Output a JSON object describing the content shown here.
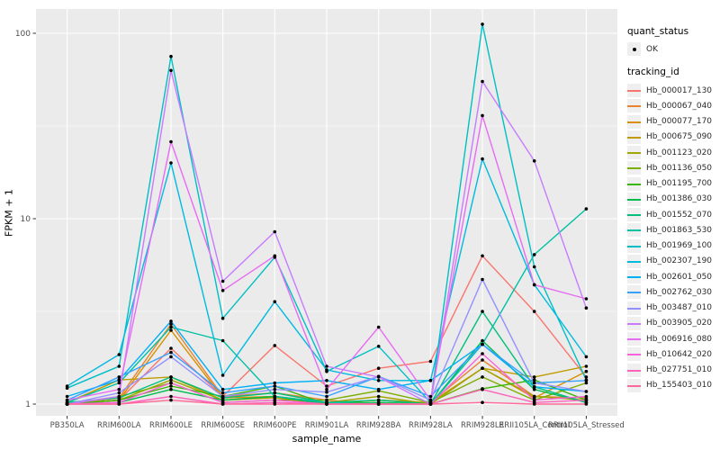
{
  "figure": {
    "background": "#ffffff",
    "panel_fill": "#ebebeb",
    "grid_color": "#ffffff",
    "tick_color": "#333333",
    "tick_label_color": "#4d4d4d"
  },
  "legend": {
    "quant_title": "quant_status",
    "quant_item_label": "OK",
    "tracking_title": "tracking_id"
  },
  "chart_data": {
    "type": "line",
    "title": "",
    "xlabel": "sample_name",
    "ylabel": "FPKM + 1",
    "y_scale": "log10",
    "ylim": [
      1,
      130
    ],
    "y_breaks": [
      1,
      10,
      100
    ],
    "y_break_labels": [
      "1",
      "10",
      "100"
    ],
    "y_minor_breaks": [
      3.1623,
      31.623
    ],
    "grid": true,
    "legend_position": "right",
    "point_marker": "black-dot",
    "quant_status": "OK",
    "categories": [
      "PB350LA",
      "RRIM600LA",
      "RRIM600LE",
      "RRIM600SE",
      "RRIM600PE",
      "RRIM901LA",
      "RRIM928BA",
      "RRIM928LA",
      "RRIM928LE",
      "RRII105LA_Control",
      "RRII105LA_Stressed"
    ],
    "series": [
      {
        "name": "Hb_000017_130",
        "color": "#F8766D",
        "values": [
          1.0,
          1.05,
          2.0,
          1.1,
          2.07,
          1.25,
          1.56,
          1.7,
          6.3,
          3.16,
          1.4
        ]
      },
      {
        "name": "Hb_000067_040",
        "color": "#EA8331",
        "values": [
          1.0,
          1.08,
          2.7,
          1.1,
          1.15,
          1.05,
          1.0,
          1.02,
          1.73,
          1.1,
          1.08
        ]
      },
      {
        "name": "Hb_000077_170",
        "color": "#D89000",
        "values": [
          1.0,
          1.05,
          2.5,
          1.08,
          1.1,
          1.02,
          1.0,
          1.0,
          1.56,
          1.08,
          1.5
        ]
      },
      {
        "name": "Hb_000675_090",
        "color": "#C09B00",
        "values": [
          1.02,
          1.35,
          1.4,
          1.05,
          1.08,
          1.0,
          1.05,
          1.02,
          1.56,
          1.4,
          1.6
        ]
      },
      {
        "name": "Hb_001123_020",
        "color": "#A3A500",
        "values": [
          1.0,
          1.05,
          1.35,
          1.05,
          1.1,
          1.02,
          1.1,
          1.0,
          1.56,
          1.1,
          1.05
        ]
      },
      {
        "name": "Hb_001136_050",
        "color": "#7CAE00",
        "values": [
          1.0,
          1.1,
          1.3,
          1.02,
          1.05,
          1.05,
          1.18,
          1.02,
          1.4,
          1.05,
          1.3
        ]
      },
      {
        "name": "Hb_001195_700",
        "color": "#39B600",
        "values": [
          1.0,
          1.05,
          1.25,
          1.1,
          1.25,
          1.0,
          1.05,
          1.0,
          1.21,
          1.35,
          1.05
        ]
      },
      {
        "name": "Hb_001386_030",
        "color": "#00BB4E",
        "values": [
          1.0,
          1.02,
          1.2,
          1.05,
          1.1,
          1.0,
          1.02,
          1.0,
          2.2,
          1.2,
          1.02
        ]
      },
      {
        "name": "Hb_001552_070",
        "color": "#00BF7D",
        "values": [
          1.02,
          1.08,
          1.4,
          1.08,
          1.15,
          1.02,
          1.05,
          1.0,
          3.16,
          1.24,
          1.02
        ]
      },
      {
        "name": "Hb_001863_530",
        "color": "#00C1A3",
        "values": [
          1.02,
          1.3,
          2.6,
          2.2,
          1.1,
          1.02,
          1.0,
          1.0,
          2.1,
          6.4,
          11.3
        ]
      },
      {
        "name": "Hb_001969_100",
        "color": "#00BFC4",
        "values": [
          1.22,
          1.6,
          75.0,
          2.9,
          6.2,
          1.5,
          2.05,
          1.02,
          112.0,
          5.5,
          1.35
        ]
      },
      {
        "name": "Hb_002307_190",
        "color": "#00BAE0",
        "values": [
          1.25,
          1.85,
          20.0,
          1.43,
          3.57,
          1.53,
          1.34,
          1.34,
          21.0,
          4.4,
          1.8
        ]
      },
      {
        "name": "Hb_002601_050",
        "color": "#00B0F6",
        "values": [
          1.1,
          1.35,
          2.8,
          1.2,
          1.3,
          1.34,
          1.2,
          1.34,
          2.1,
          1.24,
          1.17
        ]
      },
      {
        "name": "Hb_002762_030",
        "color": "#35A2FF",
        "values": [
          1.05,
          1.4,
          1.9,
          1.15,
          1.25,
          1.1,
          1.41,
          1.1,
          2.1,
          1.3,
          1.34
        ]
      },
      {
        "name": "Hb_003487_010",
        "color": "#9590FF",
        "values": [
          1.0,
          1.15,
          1.8,
          1.1,
          1.2,
          1.16,
          1.41,
          1.05,
          4.7,
          1.3,
          1.17
        ]
      },
      {
        "name": "Hb_003905_020",
        "color": "#C77CFF",
        "values": [
          1.0,
          1.1,
          63.0,
          4.6,
          8.5,
          1.6,
          1.4,
          1.0,
          55.0,
          20.5,
          3.3
        ]
      },
      {
        "name": "Hb_006916_080",
        "color": "#E76BF3",
        "values": [
          1.05,
          1.2,
          26.0,
          4.1,
          6.3,
          1.2,
          2.6,
          1.05,
          36.0,
          4.4,
          3.7
        ]
      },
      {
        "name": "Hb_010642_020",
        "color": "#FA62DB",
        "values": [
          1.0,
          1.02,
          1.3,
          1.02,
          1.05,
          1.0,
          1.0,
          1.0,
          1.87,
          1.05,
          1.1
        ]
      },
      {
        "name": "Hb_027751_010",
        "color": "#FF62BC",
        "values": [
          1.0,
          1.0,
          1.1,
          1.0,
          1.02,
          1.0,
          1.0,
          1.0,
          1.2,
          1.02,
          1.05
        ]
      },
      {
        "name": "Hb_155403_010",
        "color": "#FF6A98",
        "values": [
          1.0,
          1.0,
          1.05,
          1.0,
          1.0,
          1.0,
          1.0,
          1.0,
          1.02,
          1.0,
          1.0
        ]
      }
    ]
  }
}
